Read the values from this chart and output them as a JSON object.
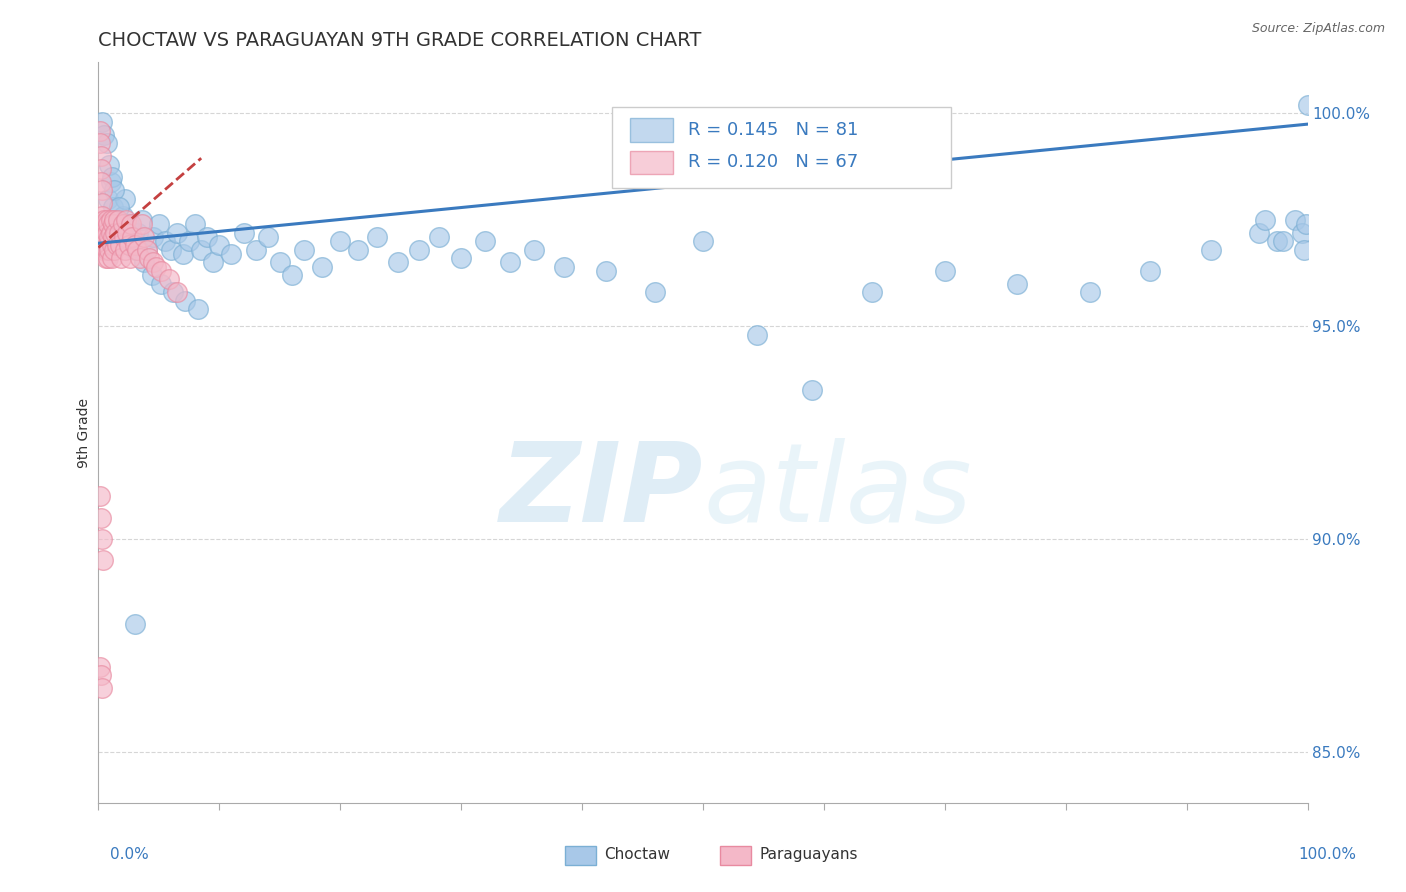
{
  "title": "CHOCTAW VS PARAGUAYAN 9TH GRADE CORRELATION CHART",
  "source": "Source: ZipAtlas.com",
  "ylabel": "9th Grade",
  "blue_label": "Choctaw",
  "pink_label": "Paraguayans",
  "R_blue": 0.145,
  "N_blue": 81,
  "R_pink": 0.12,
  "N_pink": 67,
  "blue_color": "#a8c8e8",
  "blue_edge_color": "#7bafd4",
  "pink_color": "#f4b8c8",
  "pink_edge_color": "#e88aa0",
  "blue_line_color": "#3a7abf",
  "pink_line_color": "#c44040",
  "pink_line_dashed": true,
  "title_color": "#333333",
  "axis_label_color": "#3a7abf",
  "watermark_color": "#d0e8f5",
  "legend_text_color": "#3a7abf",
  "source_color": "#666666",
  "xmin": 0.0,
  "xmax": 1.0,
  "ymin": 0.838,
  "ymax": 1.012,
  "yticks": [
    0.85,
    0.9,
    0.95,
    1.0
  ],
  "ytick_labels": [
    "85.0%",
    "90.0%",
    "95.0%",
    "100.0%"
  ],
  "xtick_positions": [
    0.0,
    0.1,
    0.2,
    0.3,
    0.4,
    0.5,
    0.6,
    0.7,
    0.8,
    0.9,
    1.0
  ],
  "blue_trend_x": [
    0.0,
    1.0
  ],
  "blue_trend_y": [
    0.9695,
    0.9975
  ],
  "pink_trend_x": [
    0.0,
    0.085
  ],
  "pink_trend_y": [
    0.9685,
    0.9895
  ],
  "blue_x": [
    0.008,
    0.01,
    0.012,
    0.015,
    0.018,
    0.02,
    0.022,
    0.025,
    0.028,
    0.03,
    0.033,
    0.036,
    0.04,
    0.045,
    0.05,
    0.055,
    0.06,
    0.065,
    0.07,
    0.075,
    0.08,
    0.085,
    0.09,
    0.095,
    0.1,
    0.11,
    0.12,
    0.13,
    0.14,
    0.15,
    0.16,
    0.17,
    0.185,
    0.2,
    0.215,
    0.23,
    0.248,
    0.265,
    0.282,
    0.3,
    0.32,
    0.34,
    0.36,
    0.385,
    0.003,
    0.005,
    0.007,
    0.009,
    0.011,
    0.013,
    0.017,
    0.021,
    0.026,
    0.032,
    0.038,
    0.044,
    0.052,
    0.062,
    0.072,
    0.082,
    0.42,
    0.46,
    0.5,
    0.545,
    0.59,
    0.64,
    0.7,
    0.76,
    0.82,
    0.87,
    0.92,
    0.96,
    0.975,
    0.99,
    0.995,
    0.997,
    0.999,
    1.0,
    0.965,
    0.98,
    0.03
  ],
  "blue_y": [
    0.98,
    0.984,
    0.978,
    0.975,
    0.972,
    0.976,
    0.98,
    0.974,
    0.97,
    0.968,
    0.972,
    0.975,
    0.968,
    0.971,
    0.974,
    0.97,
    0.968,
    0.972,
    0.967,
    0.97,
    0.974,
    0.968,
    0.971,
    0.965,
    0.969,
    0.967,
    0.972,
    0.968,
    0.971,
    0.965,
    0.962,
    0.968,
    0.964,
    0.97,
    0.968,
    0.971,
    0.965,
    0.968,
    0.971,
    0.966,
    0.97,
    0.965,
    0.968,
    0.964,
    0.998,
    0.995,
    0.993,
    0.988,
    0.985,
    0.982,
    0.978,
    0.974,
    0.97,
    0.968,
    0.965,
    0.962,
    0.96,
    0.958,
    0.956,
    0.954,
    0.963,
    0.958,
    0.97,
    0.948,
    0.935,
    0.958,
    0.963,
    0.96,
    0.958,
    0.963,
    0.968,
    0.972,
    0.97,
    0.975,
    0.972,
    0.968,
    0.974,
    1.002,
    0.975,
    0.97,
    0.88
  ],
  "pink_x": [
    0.001,
    0.001,
    0.002,
    0.002,
    0.002,
    0.003,
    0.003,
    0.003,
    0.004,
    0.004,
    0.004,
    0.005,
    0.005,
    0.005,
    0.006,
    0.006,
    0.006,
    0.007,
    0.007,
    0.007,
    0.008,
    0.008,
    0.008,
    0.009,
    0.009,
    0.01,
    0.01,
    0.011,
    0.011,
    0.012,
    0.012,
    0.013,
    0.013,
    0.014,
    0.015,
    0.016,
    0.017,
    0.018,
    0.019,
    0.02,
    0.021,
    0.022,
    0.023,
    0.024,
    0.025,
    0.026,
    0.027,
    0.028,
    0.03,
    0.032,
    0.034,
    0.036,
    0.038,
    0.04,
    0.042,
    0.045,
    0.048,
    0.052,
    0.058,
    0.065,
    0.001,
    0.002,
    0.003,
    0.004,
    0.001,
    0.002,
    0.003
  ],
  "pink_y": [
    0.996,
    0.993,
    0.99,
    0.987,
    0.984,
    0.982,
    0.979,
    0.976,
    0.974,
    0.971,
    0.968,
    0.975,
    0.972,
    0.969,
    0.966,
    0.974,
    0.971,
    0.968,
    0.975,
    0.972,
    0.969,
    0.966,
    0.974,
    0.971,
    0.968,
    0.975,
    0.972,
    0.969,
    0.966,
    0.974,
    0.971,
    0.968,
    0.975,
    0.972,
    0.969,
    0.975,
    0.972,
    0.969,
    0.966,
    0.974,
    0.971,
    0.968,
    0.975,
    0.972,
    0.969,
    0.966,
    0.974,
    0.971,
    0.969,
    0.968,
    0.966,
    0.974,
    0.971,
    0.968,
    0.966,
    0.965,
    0.964,
    0.963,
    0.961,
    0.958,
    0.91,
    0.905,
    0.9,
    0.895,
    0.87,
    0.868,
    0.865
  ]
}
